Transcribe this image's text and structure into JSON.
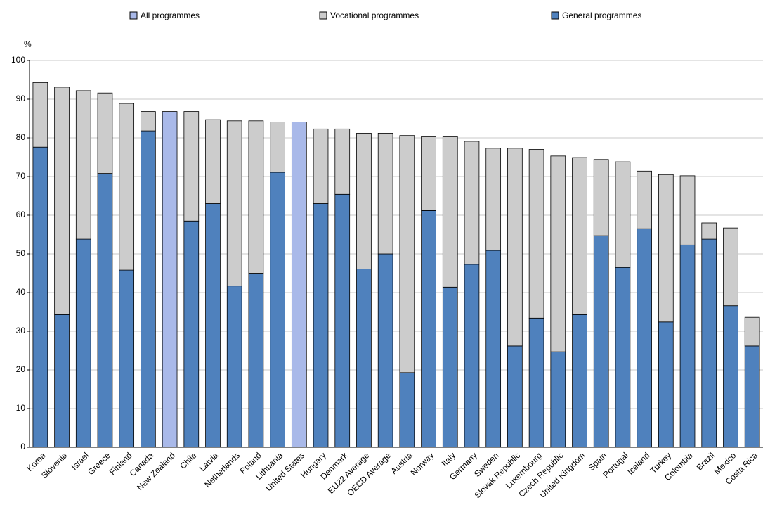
{
  "chart_data": {
    "type": "bar",
    "stacked": true,
    "y_label": "%",
    "categories": [
      "Korea",
      "Slovenia",
      "Israel",
      "Greece",
      "Finland",
      "Canada",
      "New Zealand",
      "Chile",
      "Latvia",
      "Netherlands",
      "Poland",
      "Lithuania",
      "United States",
      "Hungary",
      "Denmark",
      "EU22 Average",
      "OECD Average",
      "Austria",
      "Norway",
      "Italy",
      "Germany",
      "Sweden",
      "Slovak Republic",
      "Luxembourg",
      "Czech Republic",
      "United Kingdom",
      "Spain",
      "Portugal",
      "Iceland",
      "Turkey",
      "Colombia",
      "Brazil",
      "Mexico",
      "Costa Rica"
    ],
    "series": [
      {
        "name": "All programmes",
        "color": "#a9b9e9",
        "values": [
          null,
          null,
          null,
          null,
          null,
          null,
          86.8,
          null,
          null,
          null,
          null,
          null,
          84.1,
          null,
          null,
          null,
          null,
          null,
          null,
          null,
          null,
          null,
          null,
          null,
          null,
          null,
          null,
          null,
          null,
          null,
          null,
          null,
          null,
          null
        ]
      },
      {
        "name": "Vocational programmes",
        "color": "#cccccc",
        "values": [
          16.7,
          58.8,
          38.4,
          20.8,
          43.1,
          5.0,
          null,
          28.3,
          21.7,
          42.7,
          39.4,
          13.0,
          null,
          19.3,
          16.9,
          35.1,
          31.2,
          61.3,
          19.1,
          38.9,
          31.8,
          26.4,
          51.1,
          43.6,
          50.6,
          40.6,
          19.7,
          27.3,
          14.9,
          38.1,
          17.9,
          4.2,
          20.1,
          7.4
        ]
      },
      {
        "name": "General programmes",
        "color": "#4f81bd",
        "values": [
          77.6,
          34.3,
          53.8,
          70.8,
          45.8,
          81.8,
          null,
          58.5,
          63.0,
          41.7,
          45.0,
          71.1,
          null,
          63.0,
          65.4,
          46.1,
          50.0,
          19.3,
          61.2,
          41.4,
          47.3,
          50.9,
          26.2,
          33.4,
          24.7,
          34.3,
          54.7,
          46.5,
          56.5,
          32.4,
          52.3,
          53.8,
          36.6,
          26.2
        ]
      }
    ],
    "ylim": [
      0,
      100
    ],
    "yticks": [
      0,
      10,
      20,
      30,
      40,
      50,
      60,
      70,
      80,
      90,
      100
    ],
    "grid": true
  }
}
